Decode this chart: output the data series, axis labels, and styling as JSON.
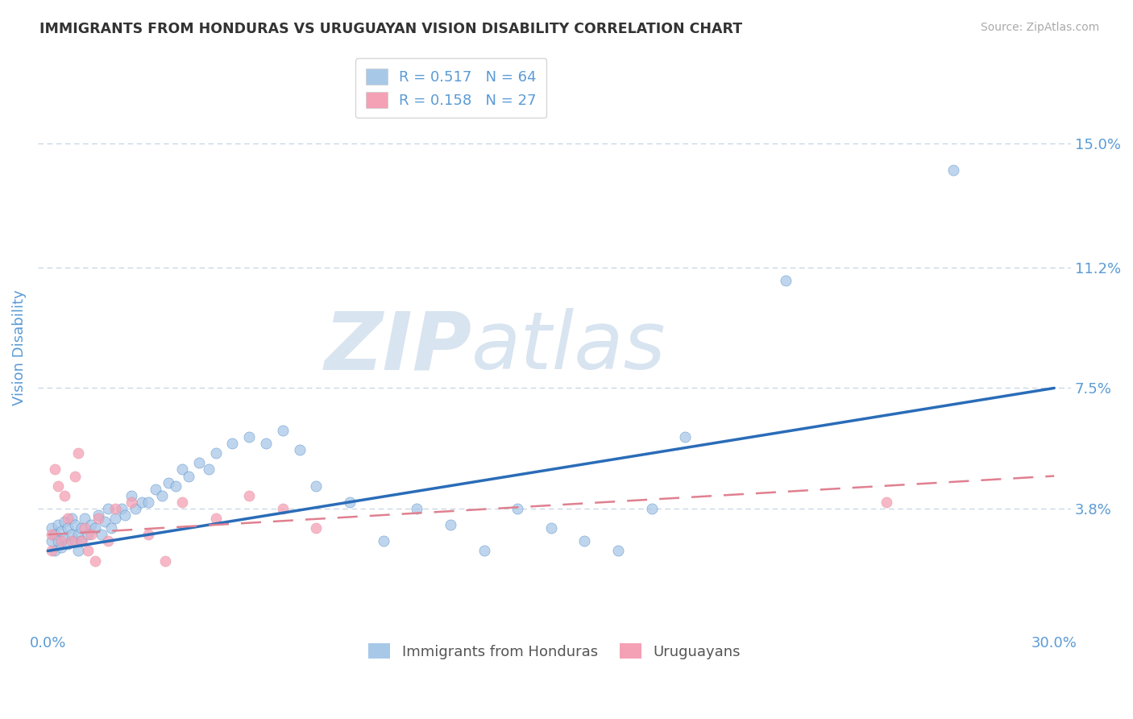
{
  "title": "IMMIGRANTS FROM HONDURAS VS URUGUAYAN VISION DISABILITY CORRELATION CHART",
  "source_text": "Source: ZipAtlas.com",
  "ylabel": "Vision Disability",
  "legend_label1": "Immigrants from Honduras",
  "legend_label2": "Uruguayans",
  "R1": 0.517,
  "N1": 64,
  "R2": 0.158,
  "N2": 27,
  "x_min": 0.0,
  "x_max": 0.3,
  "y_min": 0.0,
  "y_max": 0.175,
  "y_ticks": [
    0.038,
    0.075,
    0.112,
    0.15
  ],
  "y_tick_labels": [
    "3.8%",
    "7.5%",
    "11.2%",
    "15.0%"
  ],
  "x_ticks": [
    0.0,
    0.3
  ],
  "x_tick_labels": [
    "0.0%",
    "30.0%"
  ],
  "color_blue": "#a8c8e8",
  "color_pink": "#f4a0b5",
  "color_blue_line": "#2a6cb8",
  "color_pink_line": "#e08090",
  "title_color": "#333333",
  "axis_label_color": "#5b9bd5",
  "watermark_color": "#d8e4f0",
  "background_color": "#ffffff",
  "blue_line_y0": 0.025,
  "blue_line_y1": 0.075,
  "pink_line_y0": 0.03,
  "pink_line_y1": 0.048,
  "blue_scatter_x": [
    0.001,
    0.001,
    0.002,
    0.002,
    0.003,
    0.003,
    0.004,
    0.004,
    0.005,
    0.005,
    0.006,
    0.006,
    0.007,
    0.007,
    0.008,
    0.008,
    0.009,
    0.009,
    0.01,
    0.01,
    0.011,
    0.012,
    0.013,
    0.014,
    0.015,
    0.016,
    0.017,
    0.018,
    0.019,
    0.02,
    0.022,
    0.023,
    0.025,
    0.026,
    0.028,
    0.03,
    0.032,
    0.034,
    0.036,
    0.038,
    0.04,
    0.042,
    0.045,
    0.048,
    0.05,
    0.055,
    0.06,
    0.065,
    0.07,
    0.075,
    0.08,
    0.09,
    0.1,
    0.11,
    0.12,
    0.13,
    0.14,
    0.15,
    0.16,
    0.17,
    0.18,
    0.19,
    0.22,
    0.27
  ],
  "blue_scatter_y": [
    0.028,
    0.032,
    0.03,
    0.025,
    0.033,
    0.028,
    0.031,
    0.026,
    0.029,
    0.034,
    0.032,
    0.027,
    0.035,
    0.03,
    0.033,
    0.028,
    0.03,
    0.025,
    0.032,
    0.028,
    0.035,
    0.03,
    0.033,
    0.032,
    0.036,
    0.03,
    0.034,
    0.038,
    0.032,
    0.035,
    0.038,
    0.036,
    0.042,
    0.038,
    0.04,
    0.04,
    0.044,
    0.042,
    0.046,
    0.045,
    0.05,
    0.048,
    0.052,
    0.05,
    0.055,
    0.058,
    0.06,
    0.058,
    0.062,
    0.056,
    0.045,
    0.04,
    0.028,
    0.038,
    0.033,
    0.025,
    0.038,
    0.032,
    0.028,
    0.025,
    0.038,
    0.06,
    0.108,
    0.142
  ],
  "pink_scatter_x": [
    0.001,
    0.001,
    0.002,
    0.003,
    0.004,
    0.005,
    0.006,
    0.007,
    0.008,
    0.009,
    0.01,
    0.011,
    0.012,
    0.013,
    0.014,
    0.015,
    0.018,
    0.02,
    0.025,
    0.03,
    0.035,
    0.04,
    0.05,
    0.06,
    0.07,
    0.08,
    0.25
  ],
  "pink_scatter_y": [
    0.03,
    0.025,
    0.05,
    0.045,
    0.028,
    0.042,
    0.035,
    0.028,
    0.048,
    0.055,
    0.028,
    0.032,
    0.025,
    0.03,
    0.022,
    0.035,
    0.028,
    0.038,
    0.04,
    0.03,
    0.022,
    0.04,
    0.035,
    0.042,
    0.038,
    0.032,
    0.04
  ]
}
